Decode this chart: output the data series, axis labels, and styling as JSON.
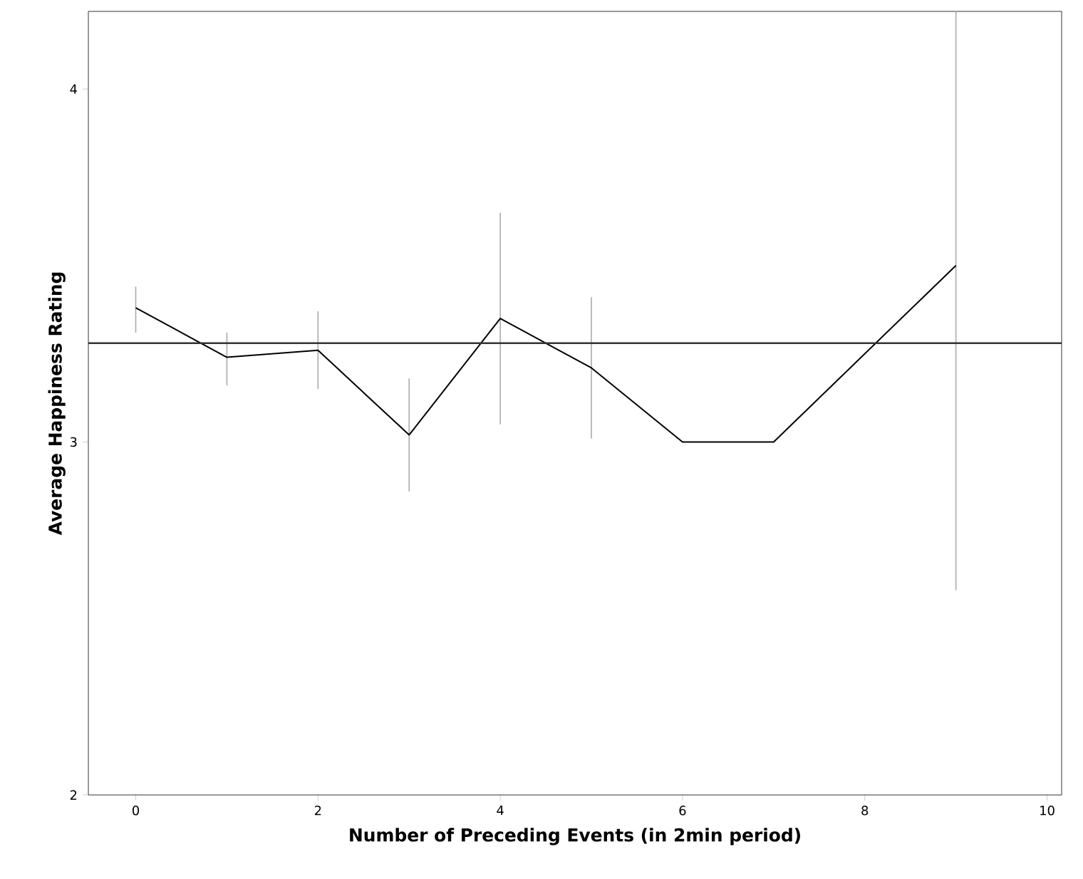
{
  "chart_data": {
    "type": "line",
    "xlabel": "Number of Preceding Events (in 2min period)",
    "ylabel": "Average Happiness Rating",
    "x": [
      0,
      1,
      2,
      3,
      4,
      5,
      6,
      7,
      9
    ],
    "series": [
      {
        "color": "#000000",
        "values": [
          3.38,
          3.24,
          3.26,
          3.02,
          3.35,
          3.21,
          3.0,
          3.0,
          3.5
        ],
        "errors": [
          [
            3.31,
            3.44
          ],
          [
            3.16,
            3.31
          ],
          [
            3.15,
            3.37
          ],
          [
            2.86,
            3.18
          ],
          [
            3.05,
            3.65
          ],
          [
            3.01,
            3.41
          ],
          null,
          null,
          [
            2.58,
            4.22
          ]
        ]
      }
    ],
    "xlim": [
      -0.52,
      10.16
    ],
    "ylim": [
      2,
      4.22
    ],
    "xticks": [
      0,
      2,
      4,
      6,
      8,
      10
    ],
    "yticks": [
      2,
      3,
      4
    ],
    "ref_lines": [
      {
        "axis": "y",
        "value": 3.28,
        "color": "#333333"
      }
    ],
    "grid": false,
    "marker": "none",
    "line_style": "solid"
  }
}
